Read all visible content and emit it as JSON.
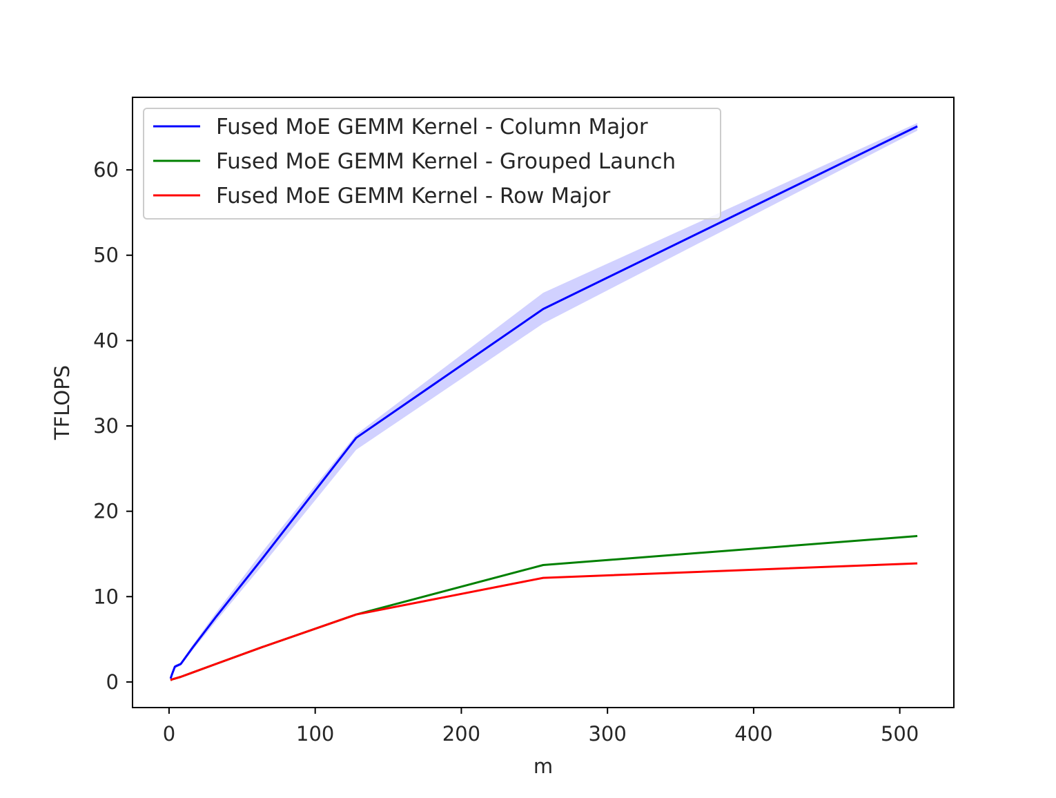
{
  "chart_data": {
    "type": "line",
    "title": "",
    "xlabel": "m",
    "ylabel": "TFLOPS",
    "xlim": [
      -25,
      537
    ],
    "ylim": [
      -3,
      68.5
    ],
    "xticks": [
      0,
      100,
      200,
      300,
      400,
      500
    ],
    "yticks": [
      0,
      10,
      20,
      30,
      40,
      50,
      60
    ],
    "grid": false,
    "legend_position": "upper-left",
    "x": [
      1,
      2,
      4,
      8,
      16,
      32,
      64,
      128,
      256,
      512
    ],
    "series": [
      {
        "name": "Fused MoE GEMM Kernel - Column Major",
        "color": "#0000ff",
        "values": [
          0.4,
          0.9,
          1.8,
          2.1,
          4.0,
          7.6,
          14.5,
          28.6,
          43.7,
          65.1
        ],
        "band_low": [
          0.3,
          0.8,
          1.6,
          1.9,
          3.7,
          7.1,
          13.7,
          27.2,
          42.0,
          64.6
        ],
        "band_high": [
          0.5,
          1.0,
          2.0,
          2.3,
          4.3,
          8.1,
          15.3,
          29.0,
          45.6,
          65.5
        ],
        "band_color": "#0000ff",
        "band_opacity": 0.18
      },
      {
        "name": "Fused MoE GEMM Kernel - Grouped Launch",
        "color": "#008000",
        "values": [
          0.2,
          0.3,
          0.4,
          0.6,
          1.1,
          2.1,
          4.1,
          7.9,
          13.7,
          17.1
        ]
      },
      {
        "name": "Fused MoE GEMM Kernel - Row Major",
        "color": "#ff0000",
        "values": [
          0.2,
          0.3,
          0.4,
          0.6,
          1.1,
          2.1,
          4.1,
          7.9,
          12.2,
          13.9
        ]
      }
    ]
  }
}
